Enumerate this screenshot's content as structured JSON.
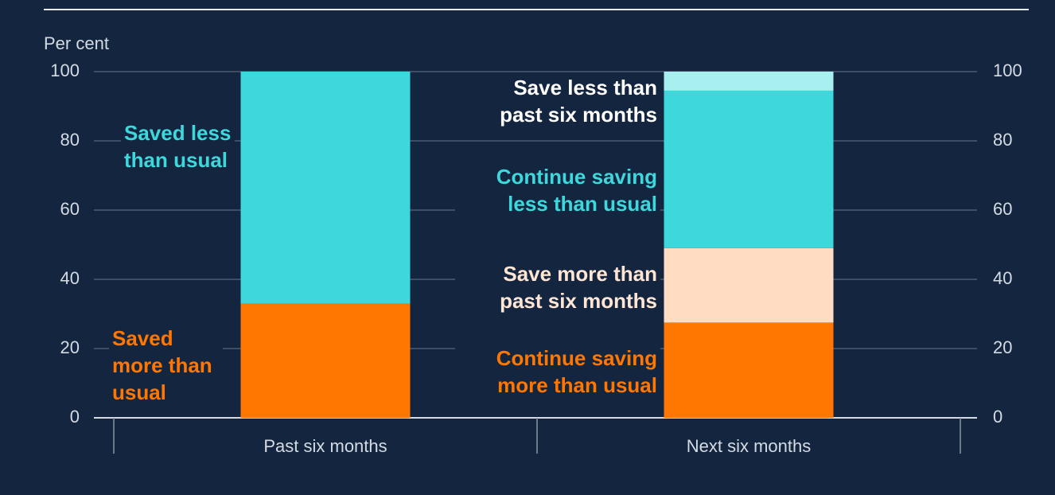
{
  "chart_data": {
    "type": "stacked_bar",
    "y_axis_label": "Per cent",
    "categories": [
      "Past six months",
      "Next six months"
    ],
    "series": [
      {
        "name": "Saved more than usual",
        "color": "#ff7700",
        "label_color": "#ff7700",
        "values": [
          33,
          null
        ]
      },
      {
        "name": "Saved less than usual",
        "color": "#3dd8dc",
        "label_color": "#3dd8dc",
        "values": [
          67,
          null
        ]
      },
      {
        "name": "Continue saving more than usual",
        "color": "#ff7700",
        "label_color": "#ff7700",
        "values": [
          null,
          27.5
        ]
      },
      {
        "name": "Save more than past six months",
        "color": "#ffdcc2",
        "label_color": "#ffe6d4",
        "values": [
          null,
          21.5
        ]
      },
      {
        "name": "Continue saving less than usual",
        "color": "#3dd8dc",
        "label_color": "#3dd8dc",
        "values": [
          null,
          45.5
        ]
      },
      {
        "name": "Save less than past six months",
        "color": "#a8f0f0",
        "label_color": "#ffffff",
        "values": [
          null,
          5.5
        ]
      }
    ],
    "ylim": [
      0,
      100
    ],
    "yticks": [
      0,
      20,
      40,
      60,
      80,
      100
    ],
    "grid": true,
    "right_axis": true
  }
}
